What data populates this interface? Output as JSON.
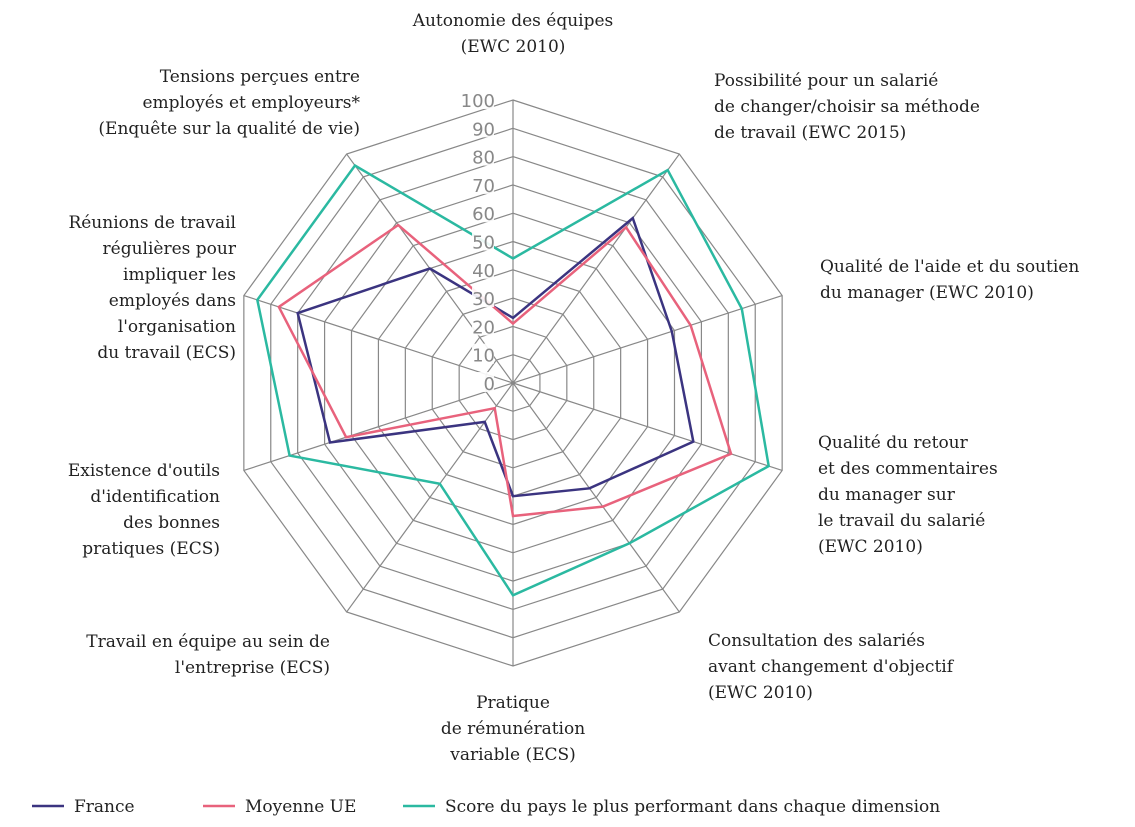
{
  "chart_data": {
    "type": "radar",
    "categories": [
      "Autonomie des équipes\n(EWC 2010)",
      "Possibilité pour  un salarié\nde changer/choisir sa méthode\nde travail (EWC 2015)",
      "Qualité de l'aide et du soutien\ndu manager (EWC 2010)",
      "Qualité du retour\net des commentaires\ndu manager sur\nle travail du salarié\n(EWC 2010)",
      "Consultation des salariés\navant changement d'objectif\n(EWC 2010)",
      "Pratique\nde rémunération\nvariable (ECS)",
      "Travail en équipe au sein de\nl'entreprise (ECS)",
      "Existence d'outils\nd'identification\ndes bonnes\npratiques (ECS)",
      "Réunions de travail\nrégulières pour\nimpliquer les\nemployés dans\nl'organisation\ndu travail (ECS)",
      "Tensions perçues entre\nemployés et employeurs*\n(Enquête sur la qualité de vie)"
    ],
    "series": [
      {
        "name": "France",
        "color": "#3b3480",
        "values": [
          23,
          72,
          59,
          67,
          46,
          40,
          17,
          68,
          80,
          50
        ]
      },
      {
        "name": "Moyenne UE",
        "color": "#e8627c",
        "values": [
          21,
          68,
          66,
          81,
          54,
          47,
          11,
          62,
          87,
          69
        ]
      },
      {
        "name": "Score du pays le plus performant dans chaque dimension",
        "color": "#2bb9a1",
        "values": [
          44,
          93,
          85,
          95,
          70,
          75,
          44,
          83,
          95,
          95
        ]
      }
    ],
    "ylim": [
      0,
      100
    ],
    "yticks": [
      0,
      10,
      20,
      30,
      40,
      50,
      60,
      70,
      80,
      90,
      100
    ],
    "grid": true
  }
}
